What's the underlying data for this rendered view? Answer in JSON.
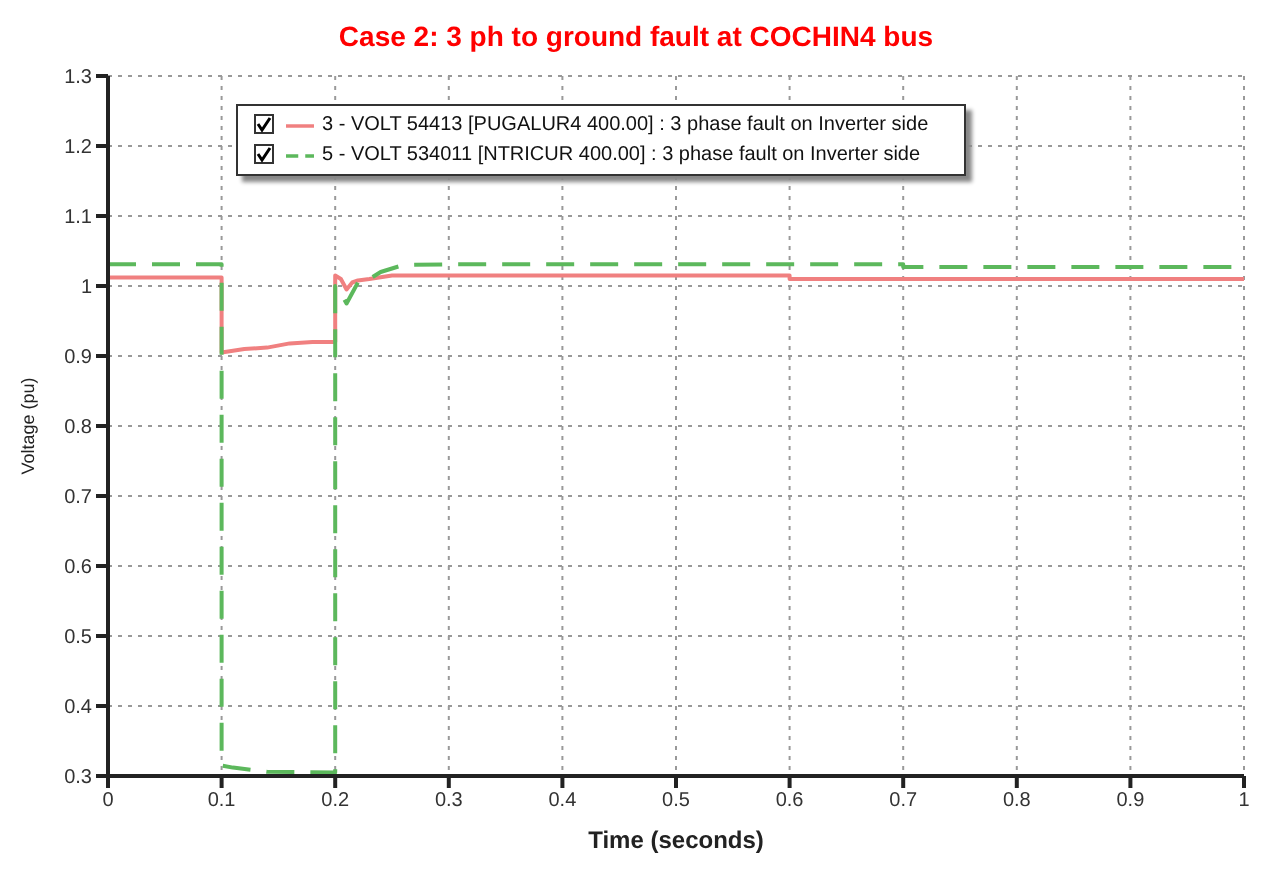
{
  "chart_data": {
    "type": "line",
    "title": "Case 2: 3 ph to ground fault at COCHIN4 bus",
    "xlabel": "Time (seconds)",
    "ylabel": "Voltage (pu)",
    "xlim": [
      0,
      1
    ],
    "xticks": [
      0,
      0.1,
      0.2,
      0.3,
      0.4,
      0.5,
      0.6,
      0.7,
      0.8,
      0.9,
      1
    ],
    "ylim": [
      0.3,
      1.3
    ],
    "yticks": [
      0.3,
      0.4,
      0.5,
      0.6,
      0.7,
      0.8,
      0.9,
      1,
      1.1,
      1.2,
      1.3
    ],
    "grid": true,
    "legend": "top",
    "marker": "none",
    "series": [
      {
        "name": "3 - VOLT  54413 [PUGALUR4    400.00] : 3 phase fault on Inverter side",
        "color": "#f08080",
        "line_style": "solid",
        "x": [
          0,
          0.1,
          0.1,
          0.12,
          0.14,
          0.16,
          0.18,
          0.2,
          0.2,
          0.205,
          0.21,
          0.215,
          0.22,
          0.23,
          0.25,
          0.3,
          0.6,
          0.6,
          1
        ],
        "values": [
          1.012,
          1.012,
          0.905,
          0.91,
          0.912,
          0.918,
          0.92,
          0.92,
          1.015,
          1.01,
          0.995,
          1.005,
          1.008,
          1.01,
          1.015,
          1.015,
          1.015,
          1.01,
          1.01
        ]
      },
      {
        "name": "5 - VOLT 534011 [NTRICUR     400.00] : 3 phase fault on Inverter side",
        "color": "#5cb85c",
        "line_style": "dashed",
        "x": [
          0,
          0.1,
          0.1,
          0.11,
          0.14,
          0.2,
          0.2,
          0.205,
          0.21,
          0.215,
          0.22,
          0.23,
          0.24,
          0.26,
          0.3,
          0.7,
          0.7,
          1
        ],
        "values": [
          1.031,
          1.031,
          0.315,
          0.312,
          0.306,
          0.305,
          1.0,
          0.99,
          0.975,
          0.99,
          1.005,
          1.01,
          1.02,
          1.03,
          1.031,
          1.031,
          1.027,
          1.027
        ]
      }
    ]
  }
}
